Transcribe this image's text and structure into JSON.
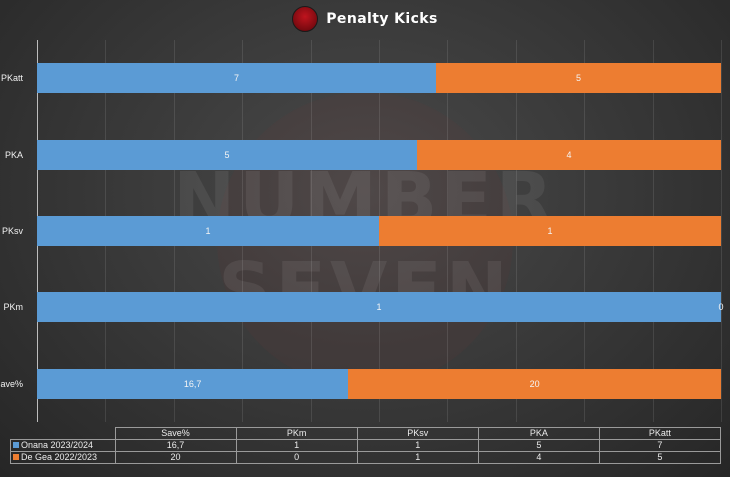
{
  "header": {
    "title": "Penalty Kicks",
    "logo_text": "NUMBER SEVEN"
  },
  "watermark": {
    "line1": "NUMBER",
    "line2": "SEVEN"
  },
  "colors": {
    "series1": "#5b9bd5",
    "series2": "#ed7d31"
  },
  "chart_data": {
    "type": "bar",
    "orientation": "horizontal",
    "stacking": "percent",
    "title": "Penalty Kicks",
    "categories": [
      "PKatt",
      "PKA",
      "PKsv",
      "PKm",
      "Save%"
    ],
    "series": [
      {
        "name": "Onana 2023/2024",
        "values": [
          7,
          5,
          1,
          1,
          16.7
        ],
        "labels": [
          "7",
          "5",
          "1",
          "1",
          "16,7"
        ],
        "color": "#5b9bd5"
      },
      {
        "name": "De Gea 2022/2023",
        "values": [
          5,
          4,
          1,
          0,
          20
        ],
        "labels": [
          "5",
          "4",
          "1",
          "0",
          "20"
        ],
        "color": "#ed7d31"
      }
    ],
    "grid": true,
    "legend": "data-table-below",
    "table": {
      "columns": [
        "Save%",
        "PKm",
        "PKsv",
        "PKA",
        "PKatt"
      ],
      "rows": [
        {
          "series": "Onana 2023/2024",
          "cells": [
            "16,7",
            "1",
            "1",
            "5",
            "7"
          ]
        },
        {
          "series": "De Gea 2022/2023",
          "cells": [
            "20",
            "0",
            "1",
            "4",
            "5"
          ]
        }
      ]
    }
  }
}
